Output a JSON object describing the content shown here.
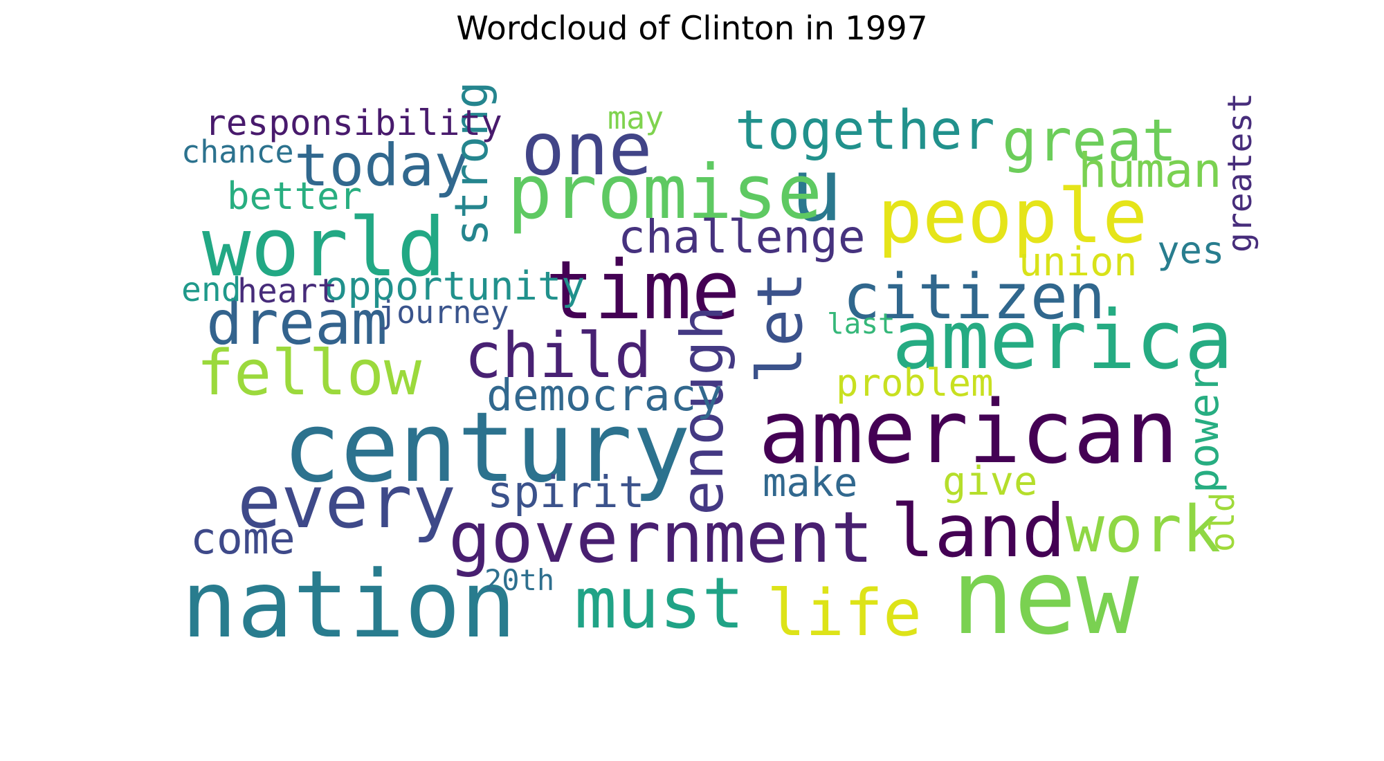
{
  "chart_data": {
    "type": "wordcloud",
    "title": "Wordcloud of Clinton in 1997",
    "background": "#ffffff",
    "colormap": "viridis",
    "words": [
      {
        "text": "new",
        "size": 1.0,
        "color": "#7ad151"
      },
      {
        "text": "century",
        "size": 0.93,
        "color": "#2c728e"
      },
      {
        "text": "nation",
        "size": 0.89,
        "color": "#287c8e"
      },
      {
        "text": "american",
        "size": 0.84,
        "color": "#440154"
      },
      {
        "text": "world",
        "size": 0.78,
        "color": "#22a884"
      },
      {
        "text": "america",
        "size": 0.78,
        "color": "#25ab82"
      },
      {
        "text": "u",
        "size": 0.84,
        "color": "#2a788e"
      },
      {
        "text": "promise",
        "size": 0.72,
        "color": "#5ec962"
      },
      {
        "text": "time",
        "size": 0.78,
        "color": "#440154"
      },
      {
        "text": "people",
        "size": 0.72,
        "color": "#e5e419"
      },
      {
        "text": "land",
        "size": 0.7,
        "color": "#440154"
      },
      {
        "text": "one",
        "size": 0.7,
        "color": "#414487"
      },
      {
        "text": "every",
        "size": 0.7,
        "color": "#3e4989"
      },
      {
        "text": "government",
        "size": 0.68,
        "color": "#481f70"
      },
      {
        "text": "must",
        "size": 0.68,
        "color": "#20a386"
      },
      {
        "text": "life",
        "size": 0.62,
        "color": "#dde318"
      },
      {
        "text": "work",
        "size": 0.62,
        "color": "#8fd744"
      },
      {
        "text": "citizen",
        "size": 0.6,
        "color": "#30678d"
      },
      {
        "text": "child",
        "size": 0.6,
        "color": "#482173"
      },
      {
        "text": "fellow",
        "size": 0.6,
        "color": "#9bd93c"
      },
      {
        "text": "dream",
        "size": 0.58,
        "color": "#33638d"
      },
      {
        "text": "today",
        "size": 0.56,
        "color": "#31688e"
      },
      {
        "text": "let",
        "size": 0.6,
        "color": "#3b528b"
      },
      {
        "text": "enough",
        "size": 0.56,
        "color": "#443983"
      },
      {
        "text": "great",
        "size": 0.56,
        "color": "#6ccd5a"
      },
      {
        "text": "together",
        "size": 0.52,
        "color": "#21918c"
      },
      {
        "text": "human",
        "size": 0.46,
        "color": "#7ad151"
      },
      {
        "text": "challenge",
        "size": 0.44,
        "color": "#46327e"
      },
      {
        "text": "strong",
        "size": 0.44,
        "color": "#25858e"
      },
      {
        "text": "democracy",
        "size": 0.42,
        "color": "#31688e"
      },
      {
        "text": "spirit",
        "size": 0.42,
        "color": "#3b528b"
      },
      {
        "text": "come",
        "size": 0.42,
        "color": "#3e4989"
      },
      {
        "text": "power",
        "size": 0.4,
        "color": "#27ad81"
      },
      {
        "text": "union",
        "size": 0.38,
        "color": "#d8e219"
      },
      {
        "text": "give",
        "size": 0.38,
        "color": "#b5de2b"
      },
      {
        "text": "make",
        "size": 0.38,
        "color": "#31688e"
      },
      {
        "text": "opportunity",
        "size": 0.38,
        "color": "#21918c"
      },
      {
        "text": "problem",
        "size": 0.36,
        "color": "#c8e020"
      },
      {
        "text": "better",
        "size": 0.36,
        "color": "#28ae80"
      },
      {
        "text": "yes",
        "size": 0.36,
        "color": "#287d8e"
      },
      {
        "text": "responsibility",
        "size": 0.34,
        "color": "#481a6c"
      },
      {
        "text": "greatest",
        "size": 0.32,
        "color": "#472d7b"
      },
      {
        "text": "old",
        "size": 0.32,
        "color": "#9fda3a"
      },
      {
        "text": "heart",
        "size": 0.32,
        "color": "#472c7a"
      },
      {
        "text": "end",
        "size": 0.32,
        "color": "#1f998a"
      },
      {
        "text": "chance",
        "size": 0.3,
        "color": "#2c728e"
      },
      {
        "text": "journey",
        "size": 0.3,
        "color": "#3a548c"
      },
      {
        "text": "may",
        "size": 0.3,
        "color": "#7fd34e"
      },
      {
        "text": "20th",
        "size": 0.28,
        "color": "#2e6f8e"
      },
      {
        "text": "last",
        "size": 0.27,
        "color": "#35b779"
      }
    ]
  }
}
